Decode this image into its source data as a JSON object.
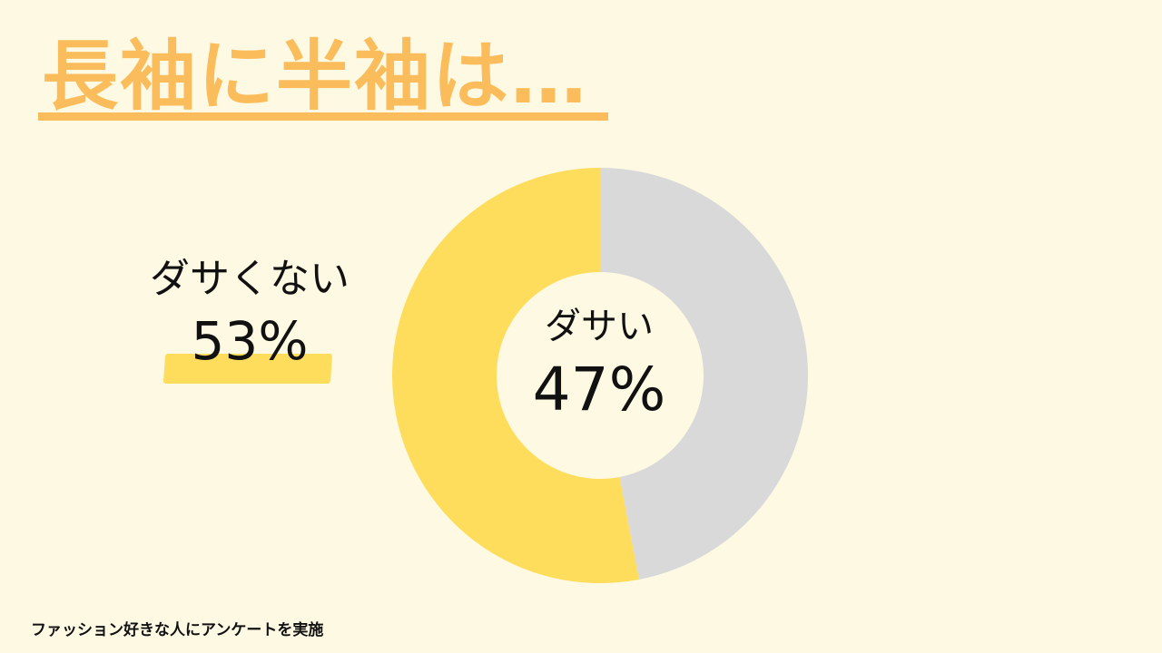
{
  "title": "長袖に半袖は…",
  "footnote": "ファッション好きな人にアンケートを実施",
  "colors": {
    "background": "#fef9e3",
    "title": "#fbbd5c",
    "dasai": "#d9d9d9",
    "dasakunai": "#fedd5c"
  },
  "chart_data": {
    "type": "pie",
    "donut": true,
    "categories": [
      "ダサい",
      "ダサくない"
    ],
    "values": [
      47,
      53
    ],
    "labels": [
      {
        "category": "ダサい",
        "value_label": "47%"
      },
      {
        "category": "ダサくない",
        "value_label": "53%"
      }
    ],
    "start": "top",
    "direction": "clockwise"
  }
}
